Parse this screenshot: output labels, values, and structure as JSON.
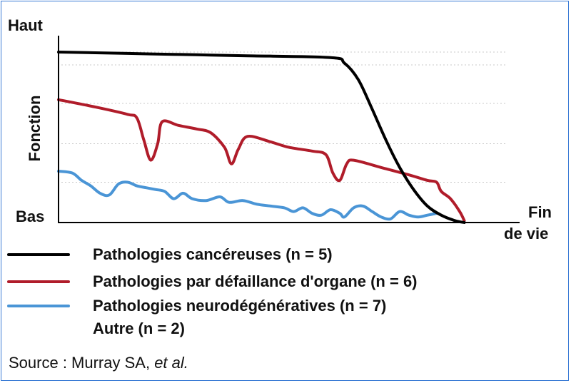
{
  "chart_data": {
    "type": "line",
    "title": "",
    "y_top_label": "Haut",
    "y_axis_label": "Fonction",
    "y_bottom_label": "Bas",
    "x_end_label_line1": "Fin",
    "x_end_label_line2": "de vie",
    "grid": "dotted horizontal",
    "series": [
      {
        "name": "Pathologies cancéreuses (n = 5)",
        "color": "#000000",
        "points": [
          [
            0,
            0.93
          ],
          [
            0.1,
            0.925
          ],
          [
            0.2,
            0.92
          ],
          [
            0.3,
            0.915
          ],
          [
            0.4,
            0.91
          ],
          [
            0.59,
            0.9
          ],
          [
            0.62,
            0.87
          ],
          [
            0.65,
            0.78
          ],
          [
            0.68,
            0.62
          ],
          [
            0.71,
            0.45
          ],
          [
            0.74,
            0.3
          ],
          [
            0.77,
            0.18
          ],
          [
            0.8,
            0.09
          ],
          [
            0.83,
            0.04
          ],
          [
            0.86,
            0.01
          ],
          [
            0.88,
            0.0
          ]
        ]
      },
      {
        "name": "Pathologies par défaillance d'organe (n = 6)",
        "color": "#b01c2a",
        "points": [
          [
            0,
            0.67
          ],
          [
            0.08,
            0.63
          ],
          [
            0.15,
            0.59
          ],
          [
            0.17,
            0.57
          ],
          [
            0.185,
            0.45
          ],
          [
            0.2,
            0.34
          ],
          [
            0.215,
            0.43
          ],
          [
            0.225,
            0.55
          ],
          [
            0.26,
            0.53
          ],
          [
            0.3,
            0.51
          ],
          [
            0.33,
            0.49
          ],
          [
            0.36,
            0.41
          ],
          [
            0.375,
            0.32
          ],
          [
            0.39,
            0.4
          ],
          [
            0.41,
            0.47
          ],
          [
            0.46,
            0.44
          ],
          [
            0.5,
            0.41
          ],
          [
            0.55,
            0.39
          ],
          [
            0.58,
            0.37
          ],
          [
            0.595,
            0.27
          ],
          [
            0.61,
            0.23
          ],
          [
            0.625,
            0.32
          ],
          [
            0.64,
            0.34
          ],
          [
            0.7,
            0.3
          ],
          [
            0.76,
            0.26
          ],
          [
            0.8,
            0.23
          ],
          [
            0.82,
            0.22
          ],
          [
            0.83,
            0.17
          ],
          [
            0.85,
            0.13
          ],
          [
            0.87,
            0.06
          ],
          [
            0.88,
            0.01
          ]
        ]
      },
      {
        "name": "Pathologies neurodégénératives (n = 7)",
        "color": "#4a95d6",
        "points": [
          [
            0,
            0.28
          ],
          [
            0.03,
            0.27
          ],
          [
            0.05,
            0.23
          ],
          [
            0.07,
            0.2
          ],
          [
            0.09,
            0.16
          ],
          [
            0.11,
            0.15
          ],
          [
            0.13,
            0.21
          ],
          [
            0.15,
            0.22
          ],
          [
            0.17,
            0.2
          ],
          [
            0.19,
            0.19
          ],
          [
            0.21,
            0.18
          ],
          [
            0.23,
            0.17
          ],
          [
            0.25,
            0.13
          ],
          [
            0.27,
            0.16
          ],
          [
            0.29,
            0.13
          ],
          [
            0.32,
            0.12
          ],
          [
            0.35,
            0.14
          ],
          [
            0.37,
            0.11
          ],
          [
            0.4,
            0.12
          ],
          [
            0.43,
            0.1
          ],
          [
            0.46,
            0.09
          ],
          [
            0.49,
            0.08
          ],
          [
            0.51,
            0.06
          ],
          [
            0.53,
            0.08
          ],
          [
            0.55,
            0.05
          ],
          [
            0.57,
            0.04
          ],
          [
            0.59,
            0.07
          ],
          [
            0.61,
            0.05
          ],
          [
            0.62,
            0.03
          ],
          [
            0.64,
            0.08
          ],
          [
            0.66,
            0.09
          ],
          [
            0.68,
            0.06
          ],
          [
            0.7,
            0.03
          ],
          [
            0.72,
            0.02
          ],
          [
            0.74,
            0.06
          ],
          [
            0.76,
            0.04
          ],
          [
            0.78,
            0.03
          ],
          [
            0.8,
            0.04
          ],
          [
            0.82,
            0.05
          ]
        ]
      },
      {
        "name": "Autre (n = 2)",
        "color": ""
      }
    ]
  },
  "source": {
    "prefix": "Source : Murray SA, ",
    "italic": "et al."
  }
}
